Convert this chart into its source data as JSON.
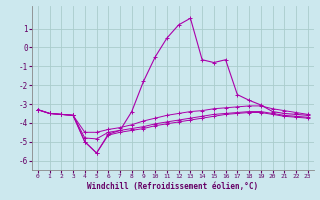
{
  "xlabel": "Windchill (Refroidissement éolien,°C)",
  "background_color": "#cce8ee",
  "grid_color": "#aacccc",
  "line_color": "#aa00aa",
  "x_hours": [
    0,
    1,
    2,
    3,
    4,
    5,
    6,
    7,
    8,
    9,
    10,
    11,
    12,
    13,
    14,
    15,
    16,
    17,
    18,
    19,
    20,
    21,
    22,
    23
  ],
  "line_main_y": [
    -3.3,
    -3.5,
    -3.55,
    -3.6,
    -5.0,
    -5.6,
    -4.6,
    -4.4,
    -3.4,
    -1.8,
    -0.5,
    0.5,
    1.2,
    1.55,
    -0.65,
    -0.8,
    -0.65,
    -2.5,
    -2.8,
    -3.05,
    -3.4,
    -3.5,
    -3.55,
    -3.6
  ],
  "line_hi_y": [
    -3.3,
    -3.5,
    -3.55,
    -3.6,
    -4.5,
    -4.5,
    -4.35,
    -4.25,
    -4.1,
    -3.9,
    -3.75,
    -3.6,
    -3.5,
    -3.4,
    -3.35,
    -3.25,
    -3.2,
    -3.15,
    -3.1,
    -3.1,
    -3.25,
    -3.35,
    -3.45,
    -3.55
  ],
  "line_mid_y": [
    -3.3,
    -3.5,
    -3.55,
    -3.6,
    -4.8,
    -4.85,
    -4.5,
    -4.4,
    -4.3,
    -4.2,
    -4.05,
    -3.95,
    -3.85,
    -3.75,
    -3.65,
    -3.55,
    -3.5,
    -3.45,
    -3.4,
    -3.4,
    -3.5,
    -3.6,
    -3.65,
    -3.7
  ],
  "line_lo_y": [
    -3.3,
    -3.5,
    -3.55,
    -3.6,
    -5.0,
    -5.6,
    -4.65,
    -4.5,
    -4.4,
    -4.3,
    -4.15,
    -4.05,
    -3.95,
    -3.85,
    -3.75,
    -3.65,
    -3.55,
    -3.5,
    -3.45,
    -3.45,
    -3.55,
    -3.65,
    -3.7,
    -3.75
  ],
  "ylim": [
    -6.5,
    2.2
  ],
  "yticks": [
    1,
    0,
    -1,
    -2,
    -3,
    -4,
    -5,
    -6
  ],
  "xlim": [
    -0.5,
    23.5
  ],
  "xticks": [
    0,
    1,
    2,
    3,
    4,
    5,
    6,
    7,
    8,
    9,
    10,
    11,
    12,
    13,
    14,
    15,
    16,
    17,
    18,
    19,
    20,
    21,
    22,
    23
  ]
}
